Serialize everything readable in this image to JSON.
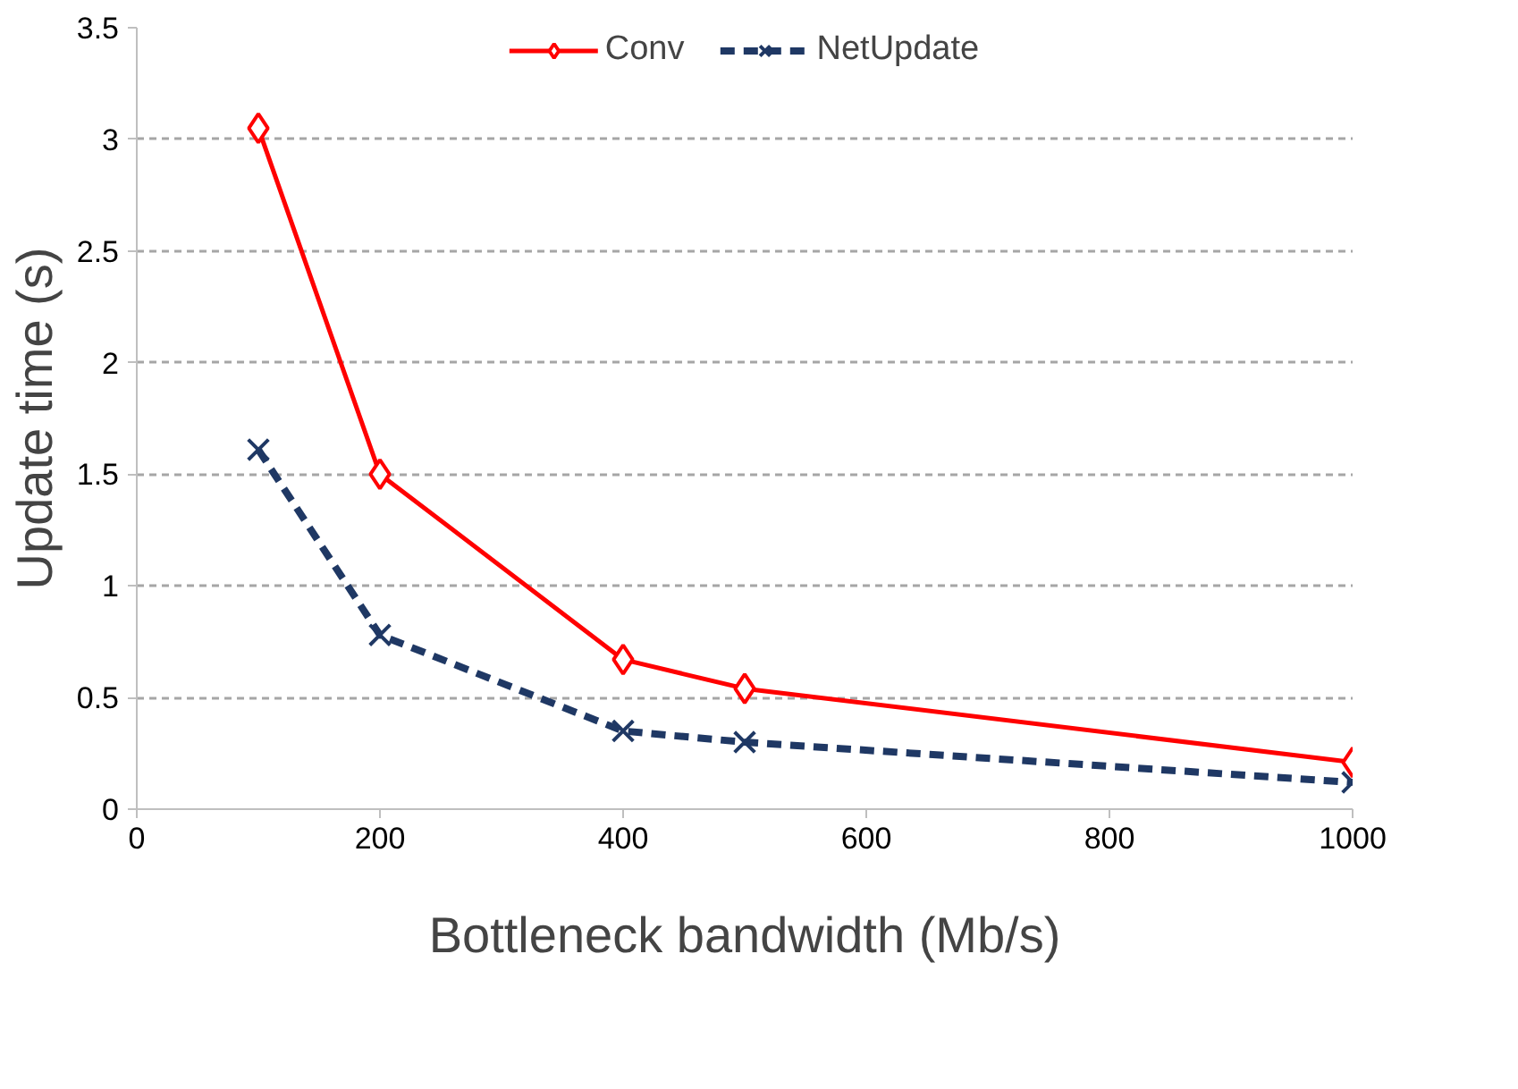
{
  "chart_data": {
    "type": "line",
    "xlabel": "Bottleneck bandwidth (Mb/s)",
    "ylabel": "Update time (s)",
    "x": [
      100,
      200,
      400,
      500,
      1000
    ],
    "series": [
      {
        "name": "Conv",
        "color": "#ff0000",
        "values": [
          3.05,
          1.5,
          0.67,
          0.54,
          0.21
        ],
        "marker": "diamond",
        "line_style": "solid"
      },
      {
        "name": "NetUpdate",
        "color": "#1f3864",
        "values": [
          1.61,
          0.78,
          0.35,
          0.3,
          0.12
        ],
        "marker": "cross",
        "line_style": "dashed"
      }
    ],
    "xlim": [
      0,
      1000
    ],
    "xticks": [
      0,
      200,
      400,
      600,
      800,
      1000
    ],
    "ylim": [
      0,
      3.5
    ],
    "yticks": [
      0,
      0.5,
      1,
      1.5,
      2,
      2.5,
      3,
      3.5
    ],
    "grid": "y",
    "legend": "top"
  }
}
